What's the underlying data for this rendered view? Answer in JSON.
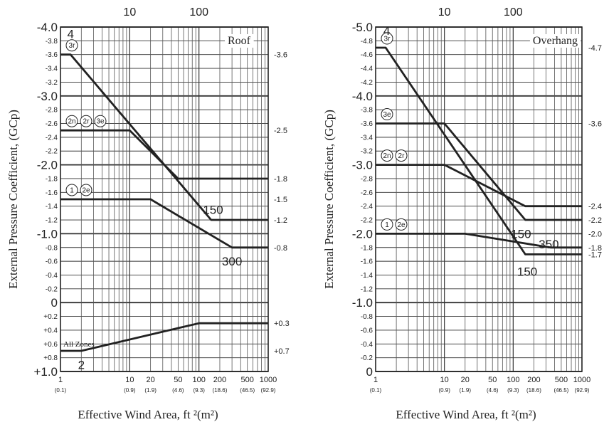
{
  "x_axis_label": "Effective Wind Area, ft ²(m²)",
  "chart_data": [
    {
      "type": "line",
      "title": "Roof",
      "ylabel": "External Pressure Coefficient, (GCp)",
      "xlabel": "Effective Wind Area, ft ²(m²)",
      "x_scale": "log",
      "xlim": [
        1,
        1000
      ],
      "ylim": [
        -4.0,
        1.0
      ],
      "y_inverted": true,
      "grid": true,
      "x_ticks": [
        {
          "value": 1,
          "label": "1",
          "metric": "(0.1)"
        },
        {
          "value": 10,
          "label": "10",
          "metric": "(0.9)"
        },
        {
          "value": 20,
          "label": "20",
          "metric": "(1.9)"
        },
        {
          "value": 50,
          "label": "50",
          "metric": "(4.6)"
        },
        {
          "value": 100,
          "label": "100",
          "metric": "(9.3)"
        },
        {
          "value": 200,
          "label": "200",
          "metric": "(18.6)"
        },
        {
          "value": 500,
          "label": "500",
          "metric": "(46.5)"
        },
        {
          "value": 1000,
          "label": "1000",
          "metric": "(92.9)"
        }
      ],
      "top_ticks": [
        {
          "value": 10,
          "label": "10"
        },
        {
          "value": 100,
          "label": "100"
        }
      ],
      "y_ticks": [
        {
          "value": -4.0,
          "label": "-4.0",
          "major": true
        },
        {
          "value": -3.8,
          "label": "-3.8",
          "major": false
        },
        {
          "value": -3.6,
          "label": "-3.6",
          "major": false
        },
        {
          "value": -3.4,
          "label": "-3.4",
          "major": false
        },
        {
          "value": -3.2,
          "label": "-3.2",
          "major": false
        },
        {
          "value": -3.0,
          "label": "-3.0",
          "major": true
        },
        {
          "value": -2.8,
          "label": "-2.8",
          "major": false
        },
        {
          "value": -2.6,
          "label": "-2.6",
          "major": false
        },
        {
          "value": -2.4,
          "label": "-2.4",
          "major": false
        },
        {
          "value": -2.2,
          "label": "-2.2",
          "major": false
        },
        {
          "value": -2.0,
          "label": "-2.0",
          "major": true
        },
        {
          "value": -1.8,
          "label": "-1.8",
          "major": false
        },
        {
          "value": -1.6,
          "label": "-1.6",
          "major": false
        },
        {
          "value": -1.4,
          "label": "-1.4",
          "major": false
        },
        {
          "value": -1.2,
          "label": "-1.2",
          "major": false
        },
        {
          "value": -1.0,
          "label": "-1.0",
          "major": true
        },
        {
          "value": -0.8,
          "label": "-0.8",
          "major": false
        },
        {
          "value": -0.6,
          "label": "-0.6",
          "major": false
        },
        {
          "value": -0.4,
          "label": "-0.4",
          "major": false
        },
        {
          "value": -0.2,
          "label": "-0.2",
          "major": false
        },
        {
          "value": 0,
          "label": "0",
          "major": true
        },
        {
          "value": 0.2,
          "label": "+0.2",
          "major": false
        },
        {
          "value": 0.4,
          "label": "+0.4",
          "major": false
        },
        {
          "value": 0.6,
          "label": "+0.6",
          "major": false
        },
        {
          "value": 0.8,
          "label": "+0.8",
          "major": false
        },
        {
          "value": 1.0,
          "label": "+1.0",
          "major": true
        }
      ],
      "right_labels": [
        {
          "value": -3.6,
          "label": "-3.6"
        },
        {
          "value": -2.5,
          "label": "-2.5"
        },
        {
          "value": -1.8,
          "label": "-1.8"
        },
        {
          "value": -1.5,
          "label": "-1.5"
        },
        {
          "value": -1.2,
          "label": "-1.2"
        },
        {
          "value": -0.8,
          "label": "-0.8"
        },
        {
          "value": 0.3,
          "label": "+0.3"
        },
        {
          "value": 0.7,
          "label": "+0.7"
        }
      ],
      "series": [
        {
          "zones": [
            "3r"
          ],
          "points": [
            [
              1,
              -3.6
            ],
            [
              1.4,
              -3.6
            ],
            [
              150,
              -1.2
            ],
            [
              1000,
              -1.2
            ]
          ]
        },
        {
          "zones": [
            "2n",
            "2r",
            "3e"
          ],
          "points": [
            [
              1,
              -2.5
            ],
            [
              10,
              -2.5
            ],
            [
              50,
              -1.8
            ],
            [
              1000,
              -1.8
            ]
          ]
        },
        {
          "zones": [
            "1",
            "2e"
          ],
          "points": [
            [
              1,
              -1.5
            ],
            [
              20,
              -1.5
            ],
            [
              300,
              -0.8
            ],
            [
              1000,
              -0.8
            ]
          ]
        },
        {
          "label": "All Zones",
          "points": [
            [
              1,
              0.7
            ],
            [
              2,
              0.7
            ],
            [
              100,
              0.3
            ],
            [
              1000,
              0.3
            ]
          ]
        }
      ],
      "annotations": [
        {
          "text": "4",
          "x": 1.4,
          "y": -3.9
        },
        {
          "text": "150",
          "x": 160,
          "y": -1.35
        },
        {
          "text": "300",
          "x": 300,
          "y": -0.6
        },
        {
          "text": "2",
          "x": 2,
          "y": 0.9
        }
      ]
    },
    {
      "type": "line",
      "title": "Overhang",
      "ylabel": "External Pressure Coefficient, (GCp)",
      "xlabel": "Effective Wind Area, ft ²(m²)",
      "x_scale": "log",
      "xlim": [
        1,
        1000
      ],
      "ylim": [
        -5.0,
        0
      ],
      "y_inverted": true,
      "grid": true,
      "x_ticks": [
        {
          "value": 1,
          "label": "1",
          "metric": "(0.1)"
        },
        {
          "value": 10,
          "label": "10",
          "metric": "(0.9)"
        },
        {
          "value": 20,
          "label": "20",
          "metric": "(1.9)"
        },
        {
          "value": 50,
          "label": "50",
          "metric": "(4.6)"
        },
        {
          "value": 100,
          "label": "100",
          "metric": "(9.3)"
        },
        {
          "value": 200,
          "label": "200",
          "metric": "(18.6)"
        },
        {
          "value": 500,
          "label": "500",
          "metric": "(46.5)"
        },
        {
          "value": 1000,
          "label": "1000",
          "metric": "(92.9)"
        }
      ],
      "top_ticks": [
        {
          "value": 10,
          "label": "10"
        },
        {
          "value": 100,
          "label": "100"
        }
      ],
      "y_ticks": [
        {
          "value": -5.0,
          "label": "-5.0",
          "major": true
        },
        {
          "value": -4.8,
          "label": "-4.8",
          "major": false
        },
        {
          "value": -4.6,
          "label": "-4.6",
          "major": false
        },
        {
          "value": -4.4,
          "label": "-4.4",
          "major": false
        },
        {
          "value": -4.2,
          "label": "-4.2",
          "major": false
        },
        {
          "value": -4.0,
          "label": "-4.0",
          "major": true
        },
        {
          "value": -3.8,
          "label": "-3.8",
          "major": false
        },
        {
          "value": -3.6,
          "label": "-3.6",
          "major": false
        },
        {
          "value": -3.4,
          "label": "-3.4",
          "major": false
        },
        {
          "value": -3.2,
          "label": "-3.2",
          "major": false
        },
        {
          "value": -3.0,
          "label": "-3.0",
          "major": true
        },
        {
          "value": -2.8,
          "label": "-2.8",
          "major": false
        },
        {
          "value": -2.6,
          "label": "-2.6",
          "major": false
        },
        {
          "value": -2.4,
          "label": "-2.4",
          "major": false
        },
        {
          "value": -2.2,
          "label": "-2.2",
          "major": false
        },
        {
          "value": -2.0,
          "label": "-2.0",
          "major": true
        },
        {
          "value": -1.8,
          "label": "-1.8",
          "major": false
        },
        {
          "value": -1.6,
          "label": "-1.6",
          "major": false
        },
        {
          "value": -1.4,
          "label": "-1.4",
          "major": false
        },
        {
          "value": -1.2,
          "label": "-1.2",
          "major": false
        },
        {
          "value": -1.0,
          "label": "-1.0",
          "major": true
        },
        {
          "value": -0.8,
          "label": "-0.8",
          "major": false
        },
        {
          "value": -0.6,
          "label": "-0.6",
          "major": false
        },
        {
          "value": -0.4,
          "label": "-0.4",
          "major": false
        },
        {
          "value": -0.2,
          "label": "-0.2",
          "major": false
        },
        {
          "value": 0,
          "label": "0",
          "major": true
        }
      ],
      "right_labels": [
        {
          "value": -4.7,
          "label": "-4.7"
        },
        {
          "value": -3.6,
          "label": "-3.6"
        },
        {
          "value": -2.4,
          "label": "-2.4"
        },
        {
          "value": -2.2,
          "label": "-2.2"
        },
        {
          "value": -2.0,
          "label": "-2.0"
        },
        {
          "value": -1.8,
          "label": "-1.8"
        },
        {
          "value": -1.7,
          "label": "-1.7"
        }
      ],
      "series": [
        {
          "zones": [
            "3r"
          ],
          "points": [
            [
              1,
              -4.7
            ],
            [
              1.4,
              -4.7
            ],
            [
              150,
              -1.7
            ],
            [
              1000,
              -1.7
            ]
          ]
        },
        {
          "zones": [
            "3e"
          ],
          "points": [
            [
              1,
              -3.6
            ],
            [
              10,
              -3.6
            ],
            [
              150,
              -2.2
            ],
            [
              1000,
              -2.2
            ]
          ]
        },
        {
          "zones": [
            "2n",
            "2r"
          ],
          "points": [
            [
              1,
              -3.0
            ],
            [
              10,
              -3.0
            ],
            [
              150,
              -2.4
            ],
            [
              1000,
              -2.4
            ]
          ]
        },
        {
          "zones": [
            "1",
            "2e"
          ],
          "points": [
            [
              1,
              -2.0
            ],
            [
              20,
              -2.0
            ],
            [
              350,
              -1.8
            ],
            [
              1000,
              -1.8
            ]
          ]
        }
      ],
      "annotations": [
        {
          "text": "4",
          "x": 1.45,
          "y": -4.95
        },
        {
          "text": "150",
          "x": 130,
          "y": -2.0
        },
        {
          "text": "350",
          "x": 330,
          "y": -1.85
        },
        {
          "text": "150",
          "x": 160,
          "y": -1.45
        }
      ]
    }
  ]
}
